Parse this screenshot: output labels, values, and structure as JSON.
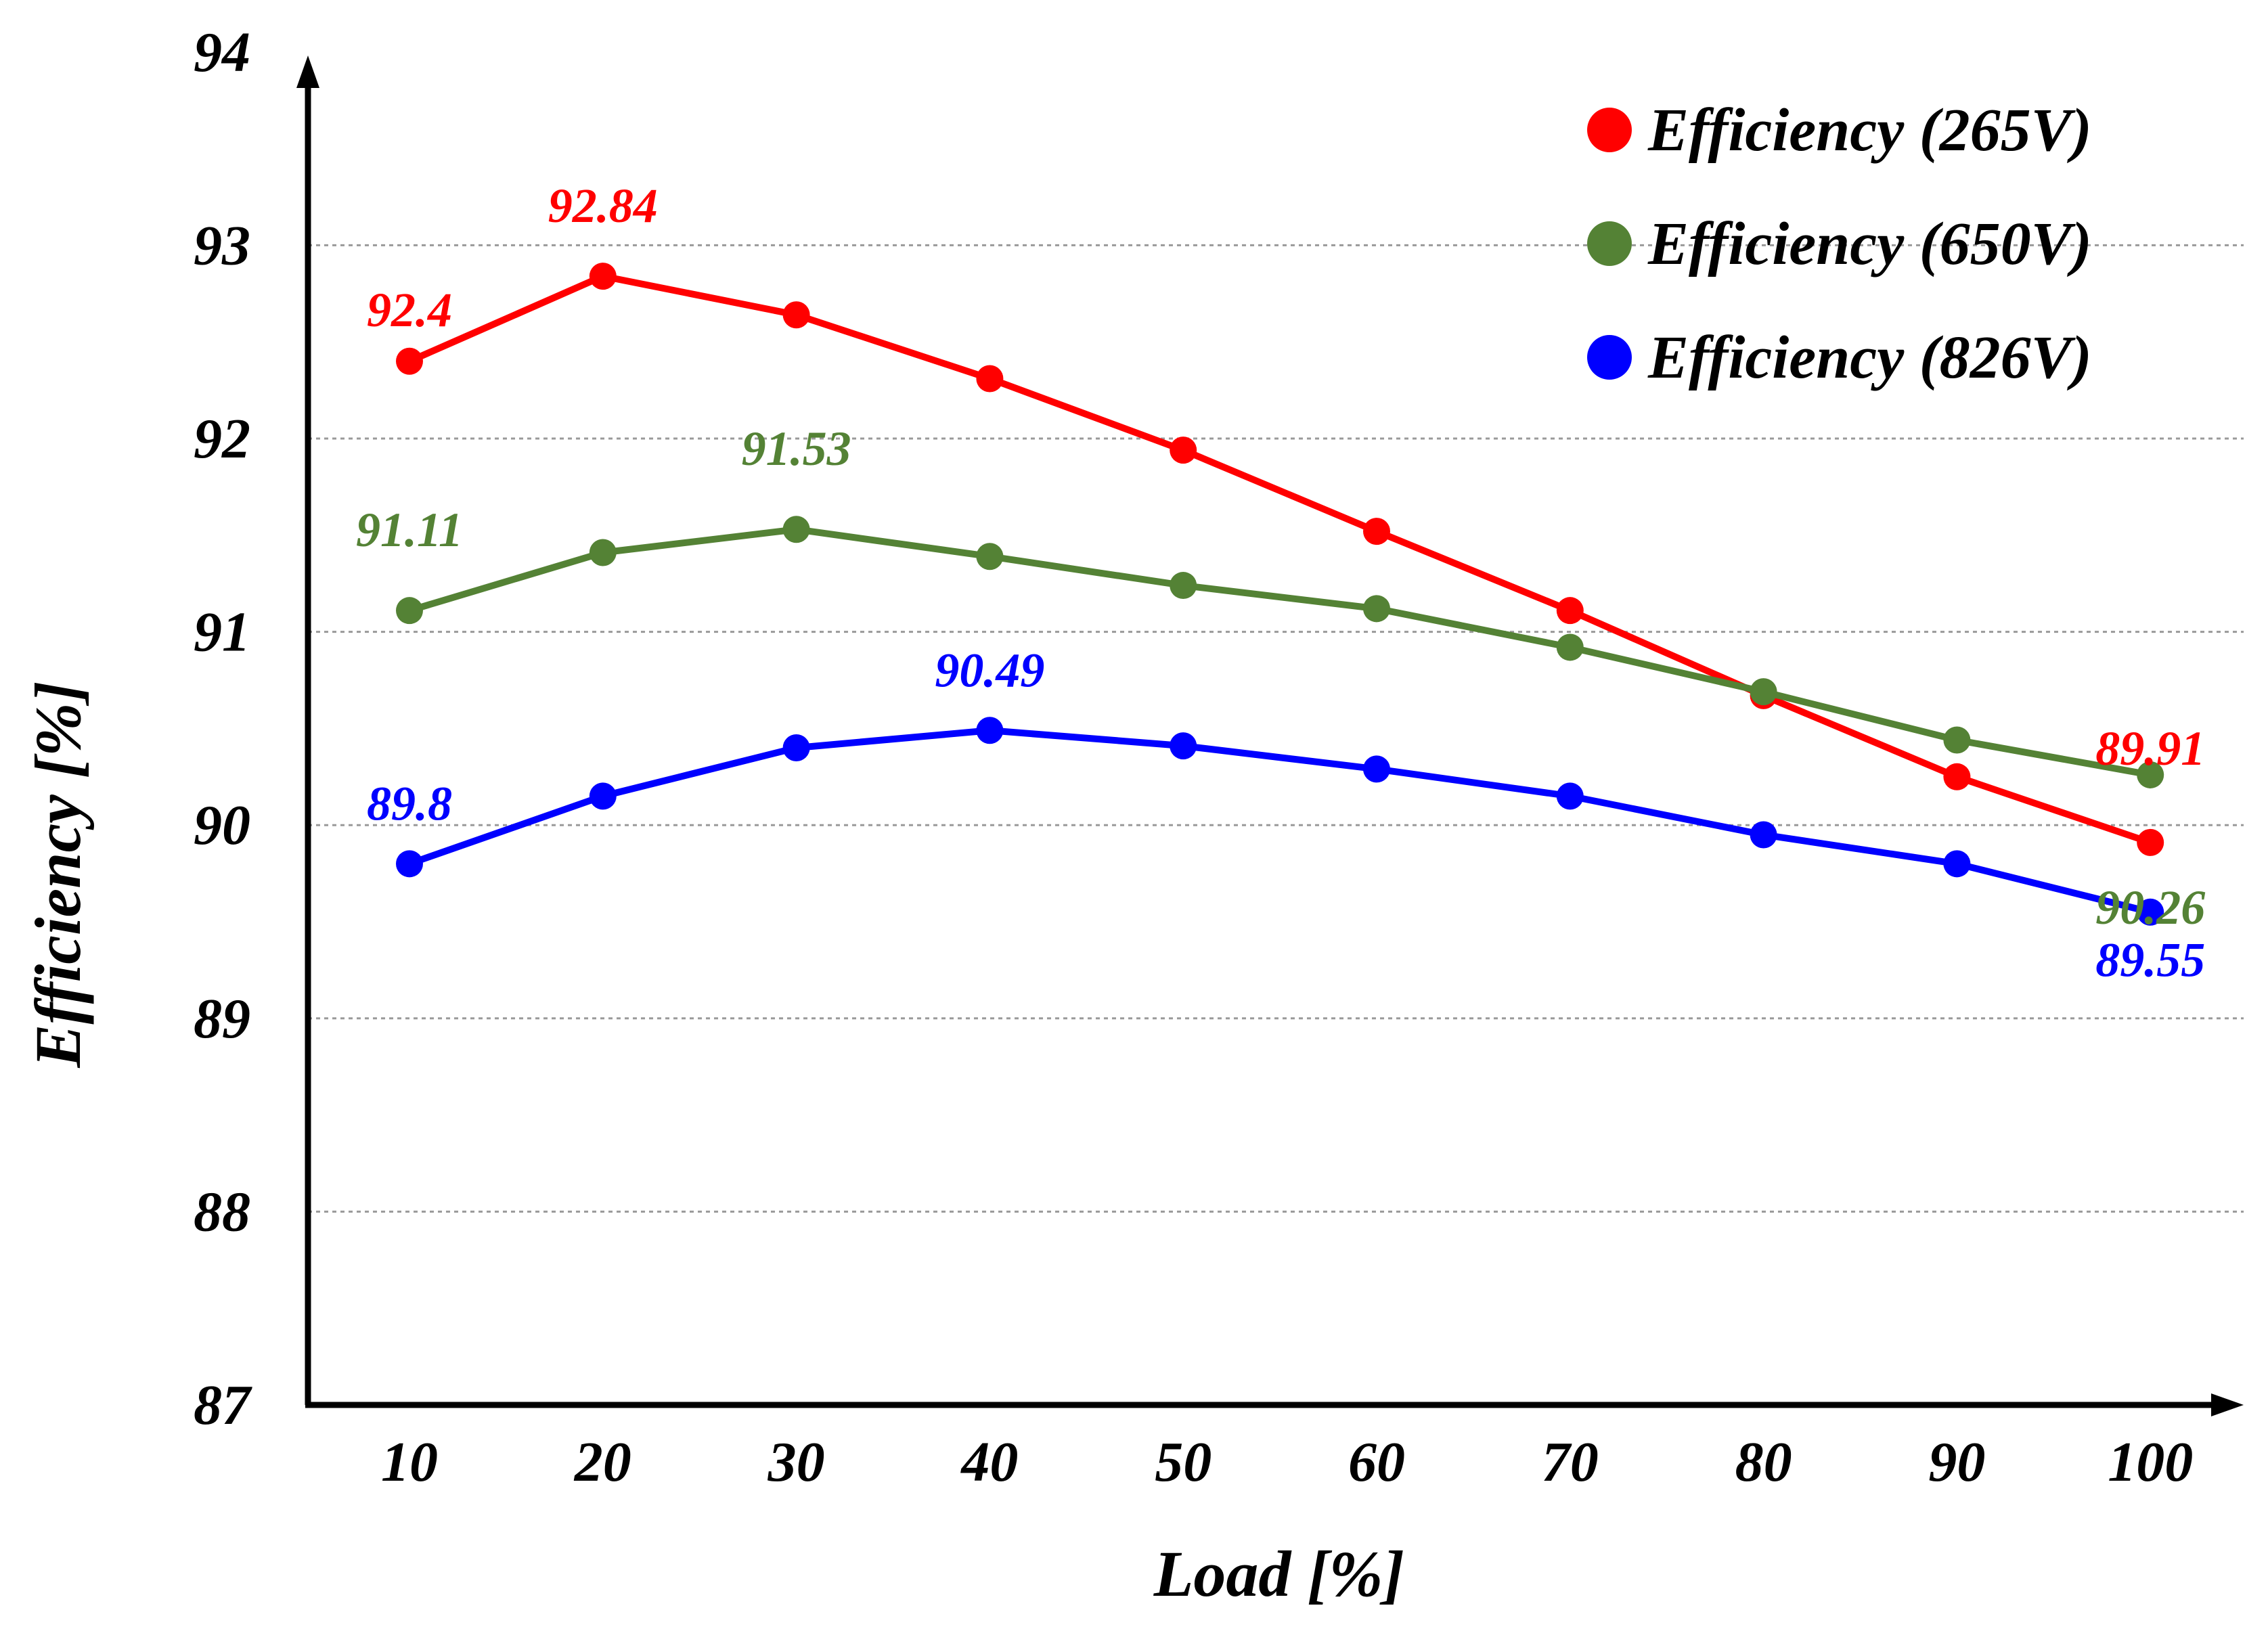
{
  "chart_data": {
    "type": "line",
    "title": "",
    "xlabel": "Load [%]",
    "ylabel": "Efficiency  [%]",
    "x": [
      10,
      20,
      30,
      40,
      50,
      60,
      70,
      80,
      90,
      100
    ],
    "x_tick_labels": [
      "10",
      "20",
      "30",
      "40",
      "50",
      "60",
      "70",
      "80",
      "90",
      "100"
    ],
    "ylim": [
      87,
      94
    ],
    "y_ticks": [
      87,
      88,
      89,
      90,
      91,
      92,
      93,
      94
    ],
    "y_tick_labels": [
      "87",
      "88",
      "89",
      "90",
      "91",
      "92",
      "93",
      "94"
    ],
    "grid": "horizontal dashed",
    "legend_position": "top-right",
    "series": [
      {
        "name": "Efficiency (265V)",
        "color": "#ff0000",
        "values": [
          92.4,
          92.84,
          92.64,
          92.31,
          91.94,
          91.52,
          91.11,
          90.67,
          90.25,
          89.91
        ],
        "data_labels": [
          {
            "x": 10,
            "text": "92.4"
          },
          {
            "x": 20,
            "text": "92.84"
          },
          {
            "x": 100,
            "text": "89.91"
          }
        ]
      },
      {
        "name": "Efficiency (650V)",
        "color": "#548235",
        "values": [
          91.11,
          91.41,
          91.53,
          91.39,
          91.24,
          91.12,
          90.92,
          90.69,
          90.44,
          90.26
        ],
        "data_labels": [
          {
            "x": 10,
            "text": "91.11"
          },
          {
            "x": 30,
            "text": "91.53"
          },
          {
            "x": 100,
            "text": "90.26"
          }
        ]
      },
      {
        "name": "Efficiency (826V)",
        "color": "#0000ff",
        "values": [
          89.8,
          90.15,
          90.4,
          90.49,
          90.41,
          90.29,
          90.15,
          89.95,
          89.8,
          89.55
        ],
        "data_labels": [
          {
            "x": 10,
            "text": "89.8"
          },
          {
            "x": 40,
            "text": "90.49"
          },
          {
            "x": 100,
            "text": "89.55"
          }
        ]
      }
    ]
  }
}
